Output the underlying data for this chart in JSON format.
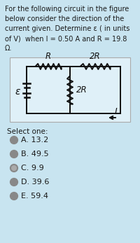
{
  "title_text": "For the following circuit in the figure\nbelow consider the direction of the\ncurrent given. Determine ε ( in units\nof V)  when I = 0.50 A and R = 19.8\nΩ.",
  "bg_color": "#c8e4f0",
  "circuit_bg": "#dff0f8",
  "select_one": "Select one:",
  "options": [
    "A. 13.2",
    "B. 49.5",
    "C. 9.9",
    "D. 39.6",
    "E. 59.4"
  ],
  "selected": 2,
  "text_color": "#1a1a1a",
  "circuit_label_R": "R",
  "circuit_label_2R_top": "2R",
  "circuit_label_2R_mid": "2R",
  "circuit_label_eps": "ε",
  "circuit_label_I": "I"
}
